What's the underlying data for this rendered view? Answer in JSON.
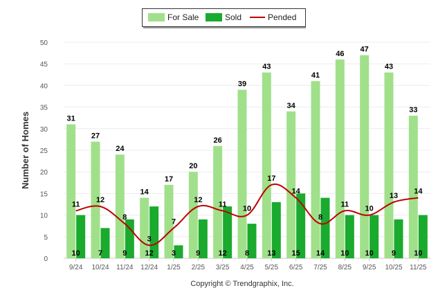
{
  "chart_data": {
    "type": "bar",
    "ylabel": "Number of Homes",
    "ylim": [
      0,
      50
    ],
    "yticks": [
      0,
      5,
      10,
      15,
      20,
      25,
      30,
      35,
      40,
      45,
      50
    ],
    "grid": true,
    "legend_position": "top-center",
    "categories": [
      "9/24",
      "10/24",
      "11/24",
      "12/24",
      "1/25",
      "2/25",
      "3/25",
      "4/25",
      "5/25",
      "6/25",
      "7/25",
      "8/25",
      "9/25",
      "10/25",
      "11/25"
    ],
    "series": [
      {
        "name": "For Sale",
        "kind": "bar",
        "color": "#a0e08a",
        "values": [
          31,
          27,
          24,
          14,
          17,
          20,
          26,
          39,
          43,
          34,
          41,
          46,
          47,
          43,
          33
        ]
      },
      {
        "name": "Sold",
        "kind": "bar",
        "color": "#1aaa2e",
        "values": [
          10,
          7,
          9,
          12,
          3,
          9,
          12,
          8,
          13,
          15,
          14,
          10,
          10,
          9,
          10
        ]
      },
      {
        "name": "Pended",
        "kind": "line",
        "color": "#c00000",
        "values": [
          11,
          12,
          8,
          3,
          7,
          12,
          11,
          10,
          17,
          14,
          8,
          11,
          10,
          13,
          14
        ]
      }
    ]
  },
  "credit": "Copyright © Trendgraphix, Inc."
}
